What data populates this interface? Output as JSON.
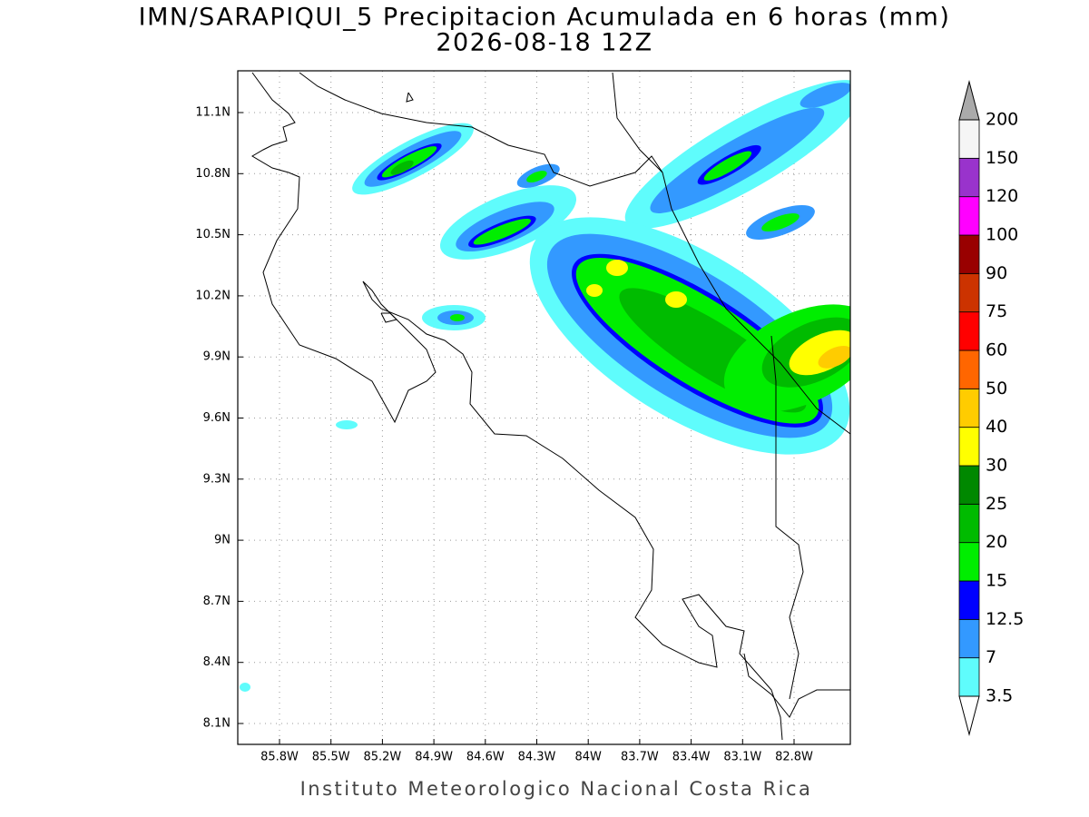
{
  "title": "IMN/SARAPIQUI_5 Precipitacion Acumulada en 6 horas (mm)",
  "subtitle": "2026-08-18 12Z",
  "map": {
    "lon_ticks": [
      {
        "value": -85.8,
        "label": "85.8W"
      },
      {
        "value": -85.5,
        "label": "85.5W"
      },
      {
        "value": -85.2,
        "label": "85.2W"
      },
      {
        "value": -84.9,
        "label": "84.9W"
      },
      {
        "value": -84.6,
        "label": "84.6W"
      },
      {
        "value": -84.3,
        "label": "84.3W"
      },
      {
        "value": -84,
        "label": "84W"
      },
      {
        "value": -83.7,
        "label": "83.7W"
      },
      {
        "value": -83.4,
        "label": "83.4W"
      },
      {
        "value": -83.1,
        "label": "83.1W"
      },
      {
        "value": -82.8,
        "label": "82.8W"
      }
    ],
    "lat_ticks": [
      {
        "value": 11.1,
        "label": "11.1N"
      },
      {
        "value": 10.8,
        "label": "10.8N"
      },
      {
        "value": 10.5,
        "label": "10.5N"
      },
      {
        "value": 10.2,
        "label": "10.2N"
      },
      {
        "value": 9.9,
        "label": "9.9N"
      },
      {
        "value": 9.6,
        "label": "9.6N"
      },
      {
        "value": 9.3,
        "label": "9.3N"
      },
      {
        "value": 9,
        "label": "9N"
      },
      {
        "value": 8.7,
        "label": "8.7N"
      },
      {
        "value": 8.4,
        "label": "8.4N"
      },
      {
        "value": 8.1,
        "label": "8.1N"
      }
    ],
    "grid": true
  },
  "colorbar": {
    "levels": [
      3.5,
      7,
      12.5,
      15,
      20,
      25,
      30,
      40,
      50,
      60,
      75,
      90,
      100,
      120,
      150,
      200
    ],
    "colors": [
      "#5ffcfc",
      "#3399ff",
      "#0000ff",
      "#00ee00",
      "#00bb00",
      "#008800",
      "#ffff00",
      "#ffcc00",
      "#ff6600",
      "#ff0000",
      "#cc3300",
      "#990000",
      "#ff00ff",
      "#9933cc",
      "#f5f5f5"
    ],
    "under_color": "#ffffff",
    "over_color": "#aaaaaa"
  },
  "footer": "Instituto Meteorologico Nacional Costa Rica"
}
